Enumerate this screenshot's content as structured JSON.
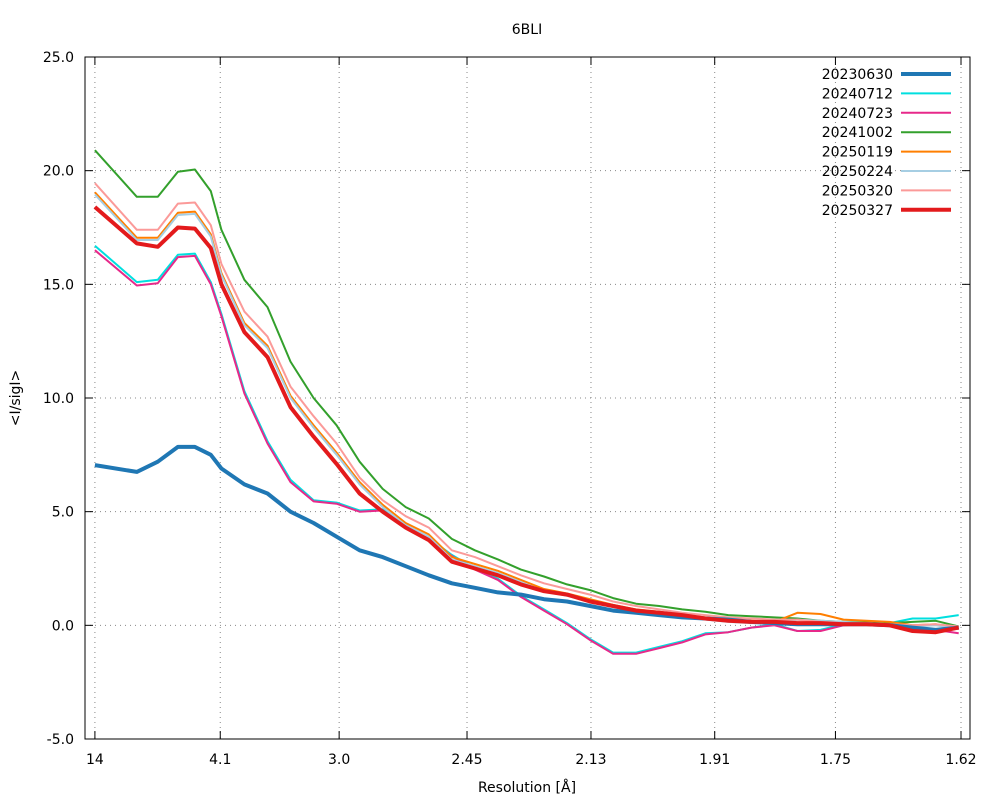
{
  "chart_data": {
    "type": "line",
    "title": "6BLI",
    "xlabel": "Resolution [Å]",
    "ylabel": "<I/sigI>",
    "x_scale_note": "x values are 1/d^2 (Å^-2); tick labels are resolution d",
    "xlim": [
      0.0008,
      0.3849
    ],
    "ylim": [
      -5,
      25
    ],
    "grid": true,
    "legend_position": "top-right",
    "x_ticks": [
      {
        "value": 0.0051,
        "label": "14"
      },
      {
        "value": 0.0595,
        "label": "4.1"
      },
      {
        "value": 0.1111,
        "label": "3.0"
      },
      {
        "value": 0.1666,
        "label": "2.45"
      },
      {
        "value": 0.2204,
        "label": "2.13"
      },
      {
        "value": 0.2741,
        "label": "1.91"
      },
      {
        "value": 0.3265,
        "label": "1.75"
      },
      {
        "value": 0.381,
        "label": "1.62"
      }
    ],
    "y_ticks": [
      {
        "value": 25,
        "label": "25.0"
      },
      {
        "value": 20,
        "label": "20.0"
      },
      {
        "value": 15,
        "label": "15.0"
      },
      {
        "value": 10,
        "label": "10.0"
      },
      {
        "value": 5,
        "label": "5.0"
      },
      {
        "value": 0,
        "label": "0.0"
      },
      {
        "value": -5,
        "label": "-5.0"
      }
    ],
    "x": [
      0.0051,
      0.0233,
      0.0324,
      0.0411,
      0.0485,
      0.0554,
      0.06,
      0.07,
      0.08,
      0.09,
      0.1,
      0.11,
      0.12,
      0.13,
      0.14,
      0.15,
      0.16,
      0.17,
      0.18,
      0.19,
      0.2,
      0.21,
      0.22,
      0.23,
      0.24,
      0.25,
      0.26,
      0.27,
      0.28,
      0.29,
      0.3,
      0.31,
      0.32,
      0.33,
      0.34,
      0.35,
      0.36,
      0.37,
      0.38
    ],
    "series": [
      {
        "name": "20230630",
        "color": "#1f77b4",
        "thick": true,
        "values": [
          7.05,
          6.75,
          7.2,
          7.85,
          7.85,
          7.5,
          6.9,
          6.2,
          5.8,
          5.0,
          4.5,
          3.9,
          3.3,
          3.0,
          2.6,
          2.2,
          1.85,
          1.65,
          1.45,
          1.35,
          1.15,
          1.05,
          0.85,
          0.65,
          0.55,
          0.45,
          0.35,
          0.3,
          0.25,
          0.15,
          0.1,
          0.05,
          0.05,
          0.05,
          0.05,
          0.0,
          -0.1,
          -0.2,
          -0.1
        ]
      },
      {
        "name": "20240712",
        "color": "#00dfdf",
        "thick": false,
        "values": [
          16.7,
          15.1,
          15.2,
          16.3,
          16.35,
          15.1,
          13.7,
          10.3,
          8.1,
          6.4,
          5.5,
          5.4,
          5.05,
          5.1,
          4.4,
          3.85,
          3.1,
          2.5,
          2.05,
          1.3,
          0.7,
          0.1,
          -0.6,
          -1.2,
          -1.2,
          -0.95,
          -0.7,
          -0.35,
          -0.3,
          -0.1,
          0.05,
          -0.25,
          -0.2,
          0.05,
          0.1,
          0.1,
          0.3,
          0.3,
          0.45
        ]
      },
      {
        "name": "20240723",
        "color": "#e7298a",
        "thick": false,
        "values": [
          16.5,
          14.95,
          15.05,
          16.2,
          16.25,
          15.0,
          13.6,
          10.2,
          8.0,
          6.3,
          5.45,
          5.35,
          5.0,
          5.05,
          4.35,
          3.8,
          3.05,
          2.45,
          2.0,
          1.25,
          0.65,
          0.05,
          -0.65,
          -1.25,
          -1.25,
          -1.0,
          -0.75,
          -0.4,
          -0.3,
          -0.1,
          0.0,
          -0.25,
          -0.25,
          0.0,
          0.05,
          0.05,
          -0.1,
          -0.2,
          -0.35
        ]
      },
      {
        "name": "20241002",
        "color": "#33a02c",
        "thick": false,
        "values": [
          20.9,
          18.85,
          18.85,
          19.95,
          20.05,
          19.1,
          17.4,
          15.2,
          14.0,
          11.6,
          10.0,
          8.8,
          7.2,
          6.0,
          5.2,
          4.7,
          3.8,
          3.3,
          2.9,
          2.45,
          2.15,
          1.8,
          1.55,
          1.2,
          0.95,
          0.85,
          0.7,
          0.6,
          0.45,
          0.4,
          0.35,
          0.3,
          0.2,
          0.15,
          0.15,
          0.1,
          0.15,
          0.2,
          -0.05
        ]
      },
      {
        "name": "20250119",
        "color": "#ff7f00",
        "thick": false,
        "values": [
          19.05,
          17.05,
          17.05,
          18.15,
          18.2,
          17.2,
          15.5,
          13.3,
          12.3,
          10.1,
          8.8,
          7.6,
          6.3,
          5.3,
          4.5,
          4.0,
          3.0,
          2.7,
          2.4,
          2.0,
          1.6,
          1.4,
          1.15,
          0.9,
          0.7,
          0.6,
          0.45,
          0.35,
          0.25,
          0.2,
          0.15,
          0.55,
          0.5,
          0.25,
          0.2,
          0.15,
          0.0,
          0.05,
          -0.15
        ]
      },
      {
        "name": "20250224",
        "color": "#a6cee3",
        "thick": false,
        "values": [
          18.95,
          16.95,
          16.95,
          18.05,
          18.1,
          17.1,
          15.4,
          13.2,
          12.2,
          10.0,
          8.7,
          7.5,
          6.2,
          5.2,
          4.4,
          3.9,
          2.9,
          2.6,
          2.3,
          1.9,
          1.5,
          1.3,
          1.05,
          0.8,
          0.6,
          0.5,
          0.35,
          0.25,
          0.15,
          0.1,
          0.05,
          0.25,
          0.2,
          0.15,
          0.1,
          0.05,
          -0.05,
          0.0,
          -0.15
        ]
      },
      {
        "name": "20250320",
        "color": "#fb9a99",
        "thick": false,
        "values": [
          19.45,
          17.4,
          17.4,
          18.55,
          18.6,
          17.6,
          15.9,
          13.8,
          12.7,
          10.5,
          9.2,
          8.0,
          6.5,
          5.5,
          4.8,
          4.3,
          3.3,
          3.0,
          2.6,
          2.2,
          1.85,
          1.6,
          1.35,
          1.05,
          0.85,
          0.7,
          0.55,
          0.45,
          0.35,
          0.3,
          0.25,
          0.25,
          0.15,
          0.1,
          0.1,
          0.05,
          0.0,
          0.05,
          -0.05
        ]
      },
      {
        "name": "20250327",
        "color": "#e31a1c",
        "thick": true,
        "values": [
          18.4,
          16.8,
          16.65,
          17.5,
          17.45,
          16.6,
          15.0,
          12.9,
          11.8,
          9.6,
          8.3,
          7.1,
          5.8,
          5.0,
          4.3,
          3.75,
          2.8,
          2.5,
          2.2,
          1.8,
          1.5,
          1.35,
          1.05,
          0.85,
          0.65,
          0.55,
          0.45,
          0.3,
          0.2,
          0.15,
          0.15,
          0.1,
          0.1,
          0.05,
          0.05,
          0.0,
          -0.25,
          -0.3,
          -0.1
        ]
      }
    ]
  }
}
